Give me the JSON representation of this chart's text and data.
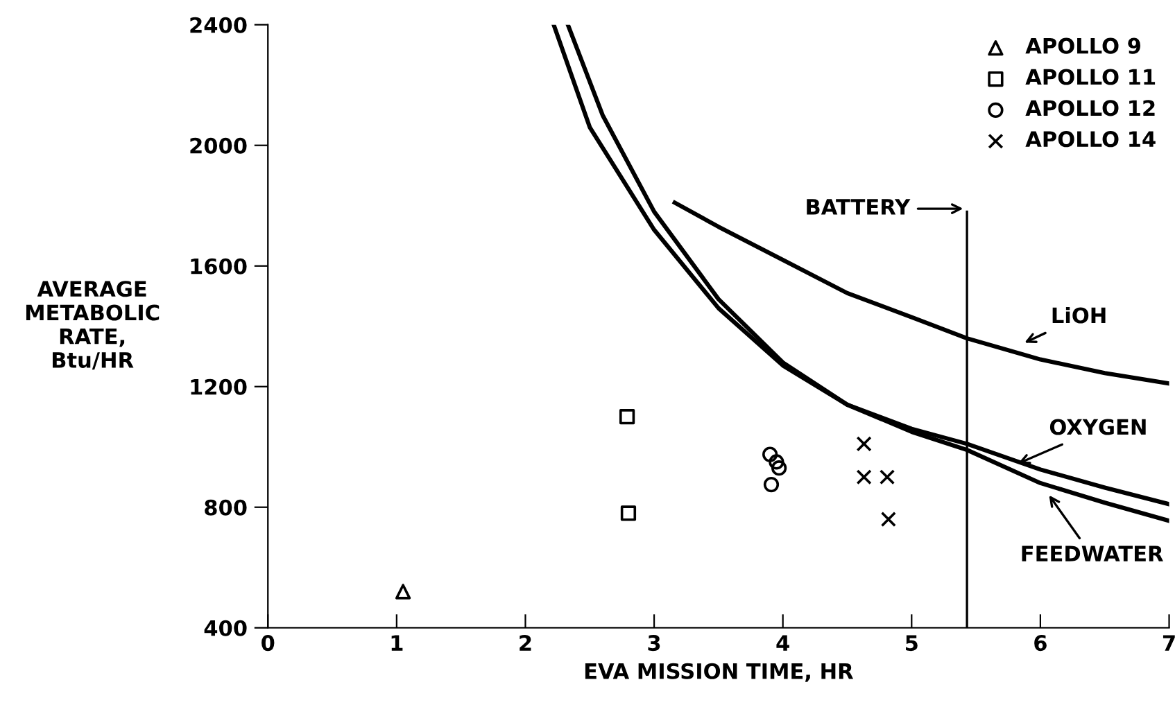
{
  "chart_data": {
    "type": "scatter",
    "xlabel": "EVA MISSION TIME, HR",
    "ylabel": "AVERAGE\nMETABOLIC\nRATE,\nBtu/HR",
    "xlim": [
      0,
      7
    ],
    "xticks": [
      0,
      1,
      2,
      3,
      4,
      5,
      6,
      7
    ],
    "ylim": [
      400,
      2400
    ],
    "yticks": [
      400,
      800,
      1200,
      1600,
      2000,
      2400
    ],
    "grid": false,
    "legend": "top right",
    "series": [
      {
        "name": "APOLLO 9",
        "marker": "triangle",
        "color": "#000000",
        "x": [
          1.05
        ],
        "values": [
          520
        ]
      },
      {
        "name": "APOLLO 11",
        "marker": "square",
        "color": "#000000",
        "x": [
          2.79,
          2.8
        ],
        "values": [
          1100,
          780
        ]
      },
      {
        "name": "APOLLO 12",
        "marker": "circle",
        "color": "#000000",
        "x": [
          3.9,
          3.95,
          3.97,
          3.91
        ],
        "values": [
          975,
          950,
          930,
          875
        ]
      },
      {
        "name": "APOLLO 14",
        "marker": "cross",
        "color": "#000000",
        "x": [
          4.63,
          4.63,
          4.81,
          4.82
        ],
        "values": [
          1010,
          900,
          900,
          760
        ]
      },
      {
        "name": "LiOH",
        "type": "line",
        "color": "#000000",
        "x": [
          3.16,
          3.5,
          4,
          4.5,
          5,
          5.43,
          6,
          6.5,
          7
        ],
        "values": [
          1810,
          1730,
          1620,
          1510,
          1430,
          1360,
          1290,
          1245,
          1210
        ]
      },
      {
        "name": "OXYGEN",
        "type": "line",
        "color": "#000000",
        "x": [
          2.22,
          2.5,
          3,
          3.5,
          4,
          4.5,
          5,
          5.43,
          6,
          6.5,
          7
        ],
        "values": [
          2400,
          2060,
          1720,
          1460,
          1270,
          1140,
          1060,
          1010,
          925,
          865,
          810
        ]
      },
      {
        "name": "FEEDWATER",
        "type": "line",
        "color": "#000000",
        "x": [
          2.33,
          2.6,
          3,
          3.5,
          4,
          4.5,
          5,
          5.43,
          6,
          6.5,
          7
        ],
        "values": [
          2400,
          2100,
          1780,
          1490,
          1280,
          1140,
          1050,
          990,
          880,
          815,
          755
        ]
      }
    ],
    "ref_lines": [
      {
        "axis": "x",
        "value": 5.43,
        "label": "BATTERY",
        "color": "#000000"
      }
    ]
  }
}
